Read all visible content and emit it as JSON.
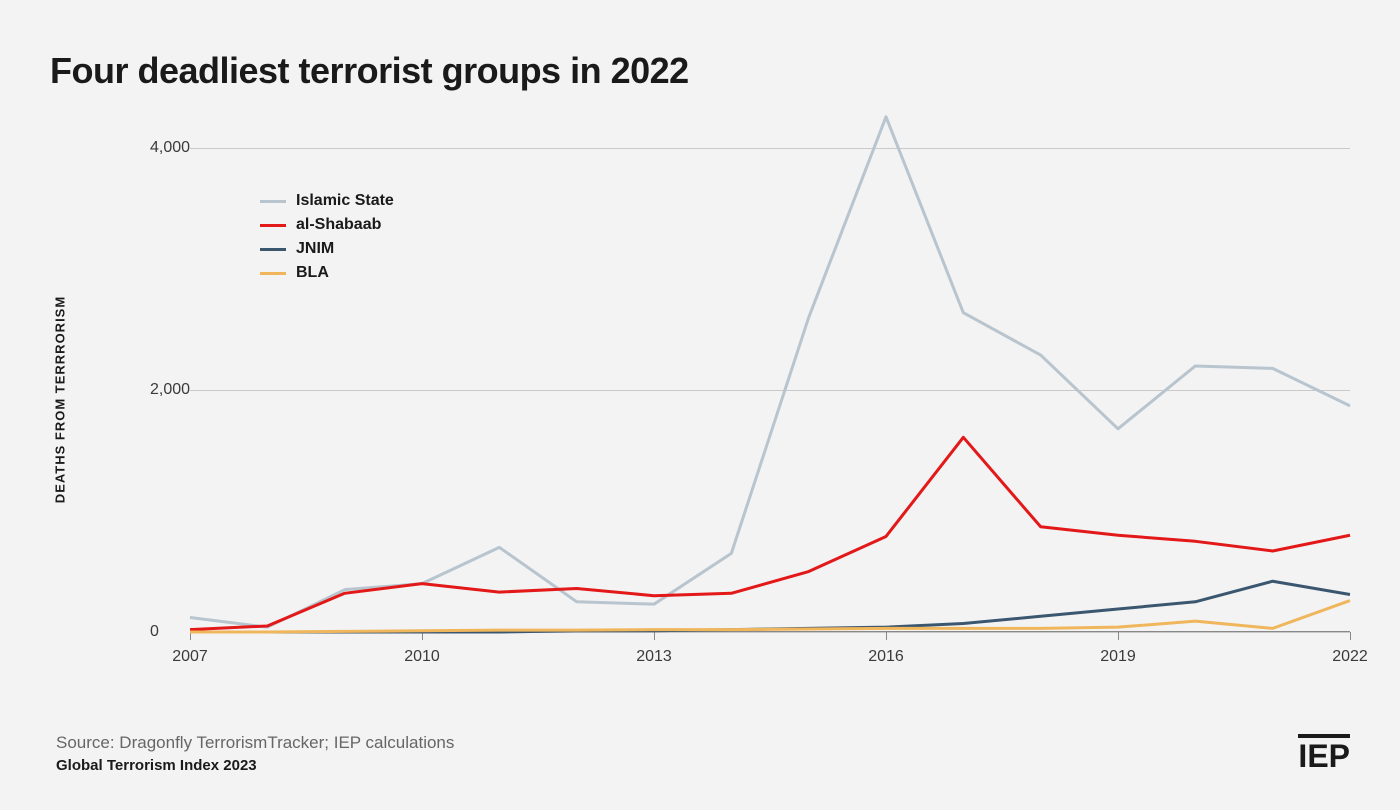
{
  "title": "Four deadliest terrorist groups in 2022",
  "yAxisTitle": "DEATHS FROM TERRRORISM",
  "source": "Source: Dragonfly TerrorismTracker; IEP calculations",
  "subtitle": "Global Terrorism Index 2023",
  "logo": "IEP",
  "chart": {
    "type": "line",
    "background_color": "#f3f3f3",
    "grid_color": "#c9c9c9",
    "axis_color": "#888888",
    "line_width": 3,
    "plot_inner_width": 1160,
    "plot_inner_height": 520,
    "x": {
      "min": 2007,
      "max": 2022,
      "ticks": [
        2007,
        2010,
        2013,
        2016,
        2019,
        2022
      ]
    },
    "y": {
      "min": 0,
      "max": 4300,
      "ticks": [
        {
          "value": 0,
          "label": "0"
        },
        {
          "value": 2000,
          "label": "2,000"
        },
        {
          "value": 4000,
          "label": "4,000"
        }
      ]
    },
    "series": [
      {
        "name": "Islamic State",
        "color": "#b8c4ce",
        "values": [
          120,
          40,
          350,
          400,
          700,
          250,
          230,
          650,
          2600,
          4260,
          2640,
          2290,
          1680,
          2200,
          2180,
          1870
        ]
      },
      {
        "name": "al-Shabaab",
        "color": "#e31818",
        "values": [
          20,
          50,
          320,
          400,
          330,
          360,
          300,
          320,
          500,
          790,
          1610,
          870,
          800,
          750,
          670,
          800
        ]
      },
      {
        "name": "JNIM",
        "color": "#3b5770",
        "values": [
          0,
          0,
          0,
          0,
          0,
          10,
          10,
          20,
          30,
          40,
          70,
          130,
          190,
          250,
          420,
          310
        ]
      },
      {
        "name": "BLA",
        "color": "#f0b65c",
        "values": [
          0,
          0,
          5,
          10,
          15,
          15,
          20,
          20,
          25,
          30,
          30,
          30,
          40,
          90,
          30,
          260
        ]
      }
    ]
  }
}
